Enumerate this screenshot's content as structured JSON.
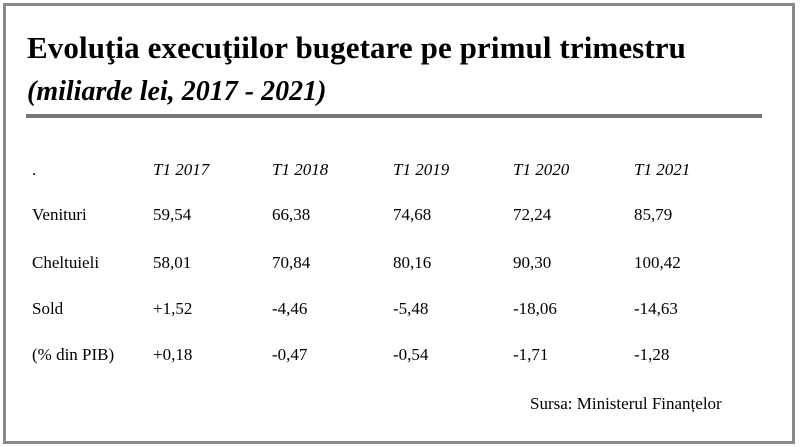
{
  "chart_data": {
    "type": "table",
    "title": "Evoluţia execuţiilor bugetare pe primul trimestru",
    "subtitle": "(miliarde lei, 2017 - 2021)",
    "corner_label": ".",
    "columns": [
      "T1 2017",
      "T1 2018",
      "T1 2019",
      "T1 2020",
      "T1 2021"
    ],
    "rows": [
      {
        "label": "Venituri",
        "values": [
          "59,54",
          "66,38",
          "74,68",
          "72,24",
          "85,79"
        ]
      },
      {
        "label": "Cheltuieli",
        "values": [
          "58,01",
          "70,84",
          "80,16",
          "90,30",
          "100,42"
        ]
      },
      {
        "label": "Sold",
        "values": [
          "+1,52",
          "-4,46",
          "-5,48",
          "-18,06",
          "-14,63"
        ]
      },
      {
        "label": "(% din PIB)",
        "values": [
          "+0,18",
          "-0,47",
          "-0,54",
          "-1,71",
          "-1,28"
        ]
      }
    ],
    "source": "Sursa: Ministerul Finanțelor",
    "colors": {
      "border": "#8a8a8a",
      "rule": "#777777",
      "text": "#000000"
    }
  }
}
